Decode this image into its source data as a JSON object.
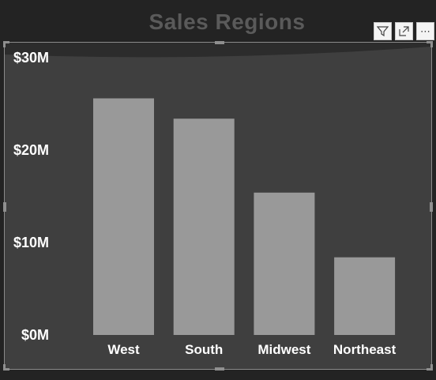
{
  "header": {
    "title": "Sales Regions"
  },
  "toolbar": {
    "icons": [
      "filter-icon",
      "focus-mode-icon",
      "more-options-icon"
    ],
    "more_label": "⋯"
  },
  "colors": {
    "background": "#232323",
    "plot_area": "#3f3f3f",
    "bar": "#999999",
    "title": "#5a5a5a",
    "tick_text": "#ffffff"
  },
  "chart_data": {
    "type": "bar",
    "title": "Sales Regions",
    "xlabel": "",
    "ylabel": "",
    "categories": [
      "West",
      "South",
      "Midwest",
      "Northeast"
    ],
    "values": [
      25.6,
      23.4,
      15.4,
      8.4
    ],
    "unit_prefix": "$",
    "unit_suffix": "M",
    "ylim": [
      0,
      30
    ],
    "yticks": [
      0,
      10,
      20,
      30
    ],
    "ytick_labels": [
      "$0M",
      "$10M",
      "$20M",
      "$30M"
    ],
    "grid": false,
    "legend": "none"
  }
}
